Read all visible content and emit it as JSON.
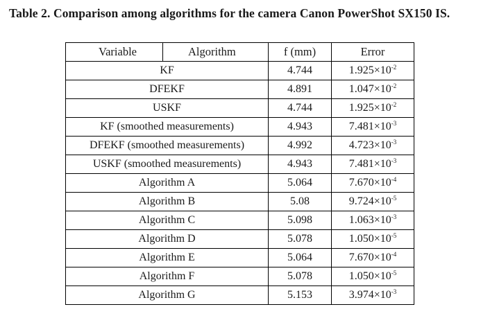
{
  "caption": "Table 2. Comparison among algorithms for the camera Canon PowerShot SX150 IS.",
  "table": {
    "headers": {
      "variable": "Variable",
      "algorithm": "Algorithm",
      "f": "f (mm)",
      "error": "Error"
    },
    "rows": [
      {
        "name": "KF",
        "f": "4.744",
        "err_mantissa": "1.925×10",
        "err_exp": "-2"
      },
      {
        "name": "DFEKF",
        "f": "4.891",
        "err_mantissa": "1.047×10",
        "err_exp": "-2"
      },
      {
        "name": "USKF",
        "f": "4.744",
        "err_mantissa": "1.925×10",
        "err_exp": "-2"
      },
      {
        "name": "KF (smoothed measurements)",
        "f": "4.943",
        "err_mantissa": "7.481×10",
        "err_exp": "-3"
      },
      {
        "name": "DFEKF (smoothed measurements)",
        "f": "4.992",
        "err_mantissa": "4.723×10",
        "err_exp": "-3"
      },
      {
        "name": "USKF (smoothed measurements)",
        "f": "4.943",
        "err_mantissa": "7.481×10",
        "err_exp": "-3"
      },
      {
        "name": "Algorithm A",
        "f": "5.064",
        "err_mantissa": "7.670×10",
        "err_exp": "-4"
      },
      {
        "name": "Algorithm B",
        "f": "5.08",
        "err_mantissa": "9.724×10",
        "err_exp": "-5"
      },
      {
        "name": "Algorithm C",
        "f": "5.098",
        "err_mantissa": "1.063×10",
        "err_exp": "-3"
      },
      {
        "name": "Algorithm D",
        "f": "5.078",
        "err_mantissa": "1.050×10",
        "err_exp": "-5"
      },
      {
        "name": "Algorithm E",
        "f": "5.064",
        "err_mantissa": "7.670×10",
        "err_exp": "-4"
      },
      {
        "name": "Algorithm F",
        "f": "5.078",
        "err_mantissa": "1.050×10",
        "err_exp": "-5"
      },
      {
        "name": "Algorithm G",
        "f": "5.153",
        "err_mantissa": "3.974×10",
        "err_exp": "-3"
      }
    ]
  }
}
